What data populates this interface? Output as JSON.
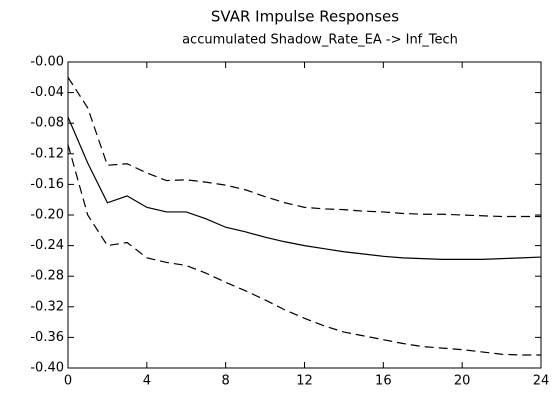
{
  "chart_data": {
    "type": "line",
    "title": "SVAR Impulse Responses",
    "subtitle": "accumulated Shadow_Rate_EA -> Inf_Tech",
    "x": [
      0,
      1,
      2,
      3,
      4,
      5,
      6,
      7,
      8,
      9,
      10,
      11,
      12,
      13,
      14,
      15,
      16,
      17,
      18,
      19,
      20,
      21,
      22,
      23,
      24
    ],
    "series": [
      {
        "color": "#000000",
        "dashed": false,
        "values": [
          -0.072,
          -0.132,
          -0.184,
          -0.175,
          -0.19,
          -0.196,
          -0.196,
          -0.205,
          -0.216,
          -0.222,
          -0.229,
          -0.235,
          -0.24,
          -0.244,
          -0.248,
          -0.251,
          -0.254,
          -0.256,
          -0.257,
          -0.258,
          -0.258,
          -0.258,
          -0.257,
          -0.256,
          -0.255
        ]
      },
      {
        "color": "#000000",
        "dashed": true,
        "values": [
          -0.02,
          -0.06,
          -0.135,
          -0.133,
          -0.145,
          -0.155,
          -0.154,
          -0.157,
          -0.161,
          -0.167,
          -0.176,
          -0.184,
          -0.19,
          -0.192,
          -0.193,
          -0.195,
          -0.196,
          -0.198,
          -0.199,
          -0.199,
          -0.2,
          -0.201,
          -0.202,
          -0.202,
          -0.202
        ]
      },
      {
        "color": "#000000",
        "dashed": true,
        "values": [
          -0.108,
          -0.2,
          -0.24,
          -0.236,
          -0.256,
          -0.262,
          -0.266,
          -0.276,
          -0.288,
          -0.299,
          -0.311,
          -0.324,
          -0.335,
          -0.345,
          -0.353,
          -0.358,
          -0.363,
          -0.368,
          -0.372,
          -0.374,
          -0.376,
          -0.379,
          -0.382,
          -0.383,
          -0.383
        ]
      }
    ],
    "xlim": [
      0,
      24
    ],
    "xticks": [
      0,
      4,
      8,
      12,
      16,
      20,
      24
    ],
    "ylim": [
      -0.4,
      0
    ],
    "yticks": [
      {
        "value": 0,
        "label": "-0.00"
      },
      -0.04,
      -0.08,
      -0.12,
      -0.16,
      {
        "value": -0.2,
        "label": "-0.20"
      },
      -0.24,
      -0.28,
      -0.32,
      -0.36,
      {
        "value": -0.4,
        "label": "-0.40"
      }
    ],
    "grid": false
  }
}
